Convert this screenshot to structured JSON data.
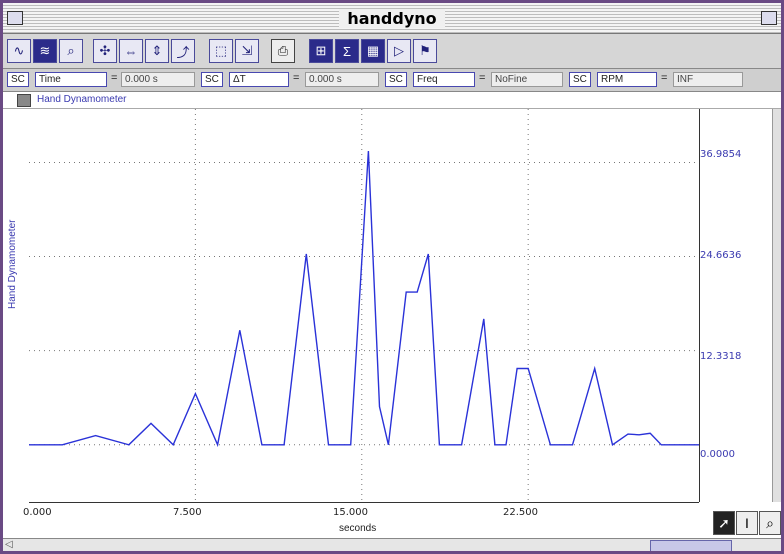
{
  "window": {
    "title": "handdyno"
  },
  "toolbar": {
    "buttons": [
      "graph-icon",
      "graph-selected-icon",
      "zoom-icon",
      "autoscale-icon",
      "scale-x-icon",
      "scale-y-icon",
      "curve-fit-icon",
      "select-icon",
      "select-range-icon",
      "print-icon",
      "stats-icon",
      "sum-icon",
      "table-icon",
      "play-icon",
      "flag-icon"
    ]
  },
  "readouts": [
    {
      "sc": "SC",
      "field": "Time",
      "value": "0.000 s"
    },
    {
      "sc": "SC",
      "field": "ΔT",
      "value": "0.000 s"
    },
    {
      "sc": "SC",
      "field": "Freq",
      "value": "NoFine"
    },
    {
      "sc": "SC",
      "field": "RPM",
      "value": "INF"
    }
  ],
  "legend": {
    "label": "Hand Dynamometer"
  },
  "axes": {
    "y_label": "Hand Dynamometer",
    "y_ticks": [
      "36.9854",
      "24.6636",
      "12.3318",
      "0.0000"
    ],
    "x_ticks": [
      "0.000",
      "7.500",
      "15.000",
      "22.500"
    ],
    "x_label": "seconds"
  },
  "chart_data": {
    "type": "line",
    "ylabel": "Hand Dynamometer",
    "xlabel": "seconds",
    "xlim": [
      0,
      30.2
    ],
    "ylim": [
      -7.5,
      44.0
    ],
    "series": [
      {
        "x": [
          0,
          1.5,
          3,
          4.5,
          5.5,
          6.5,
          7.5,
          8.5,
          9.5,
          10.5,
          11,
          11.5,
          12.5,
          13.5,
          14,
          14.5,
          15.3,
          15.8,
          16.2,
          17,
          17.5,
          18,
          18.5,
          19.5,
          20.5,
          21,
          21.5,
          22,
          22.5,
          23.5,
          24.5,
          25.5,
          26.3,
          27,
          27.5,
          28,
          28.5,
          29,
          29.5,
          30.2
        ],
        "values": [
          0,
          0,
          1.2,
          0,
          2.8,
          0,
          6.7,
          0,
          15,
          0,
          0,
          0,
          25,
          0,
          0,
          0,
          38.5,
          5,
          0,
          20,
          20,
          25,
          0,
          0,
          16.5,
          0,
          0,
          10,
          10,
          0,
          0,
          10,
          0,
          1.4,
          1.3,
          1.5,
          0,
          0,
          0,
          0
        ]
      }
    ],
    "grid": true
  },
  "tools": [
    "pointer-icon",
    "text-cursor-icon",
    "magnifier-icon"
  ],
  "colors": {
    "trace": "#2a32d8",
    "frame": "#6a4a84",
    "label": "#3a3ab0"
  }
}
